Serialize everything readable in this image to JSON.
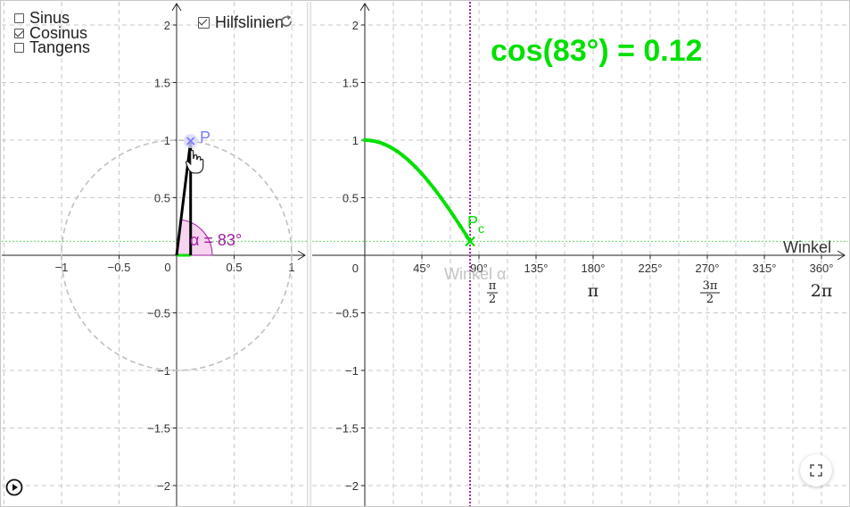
{
  "checkboxes": [
    {
      "label": "Sinus",
      "checked": false
    },
    {
      "label": "Cosinus",
      "checked": true
    },
    {
      "label": "Tangens",
      "checked": false
    }
  ],
  "hilfslinien": {
    "label": "Hilfslinien",
    "checked": true
  },
  "icons": {
    "reset": "reset-icon",
    "play": "play-icon",
    "fullscreen": "fullscreen-icon",
    "cursor": "hand-cursor-icon"
  },
  "formula": "cos(83°) = 0.12",
  "angle_label": "α = 83°",
  "point_labels": {
    "unit_circle_point": "P",
    "cos_point": "P",
    "cos_point_sub": "c"
  },
  "x_axis_label": "Winkel",
  "winkel_alpha_label": "Winkel α",
  "colors": {
    "cos_green": "#00e000",
    "angle_purple": "#a020a0",
    "point_blue": "#7b7bff",
    "grid": "#c8c8c8",
    "circle": "#c0c0c0"
  },
  "left_plot": {
    "x_ticks": [
      "−1",
      "−0.5",
      "0",
      "0.5",
      "1"
    ],
    "y_ticks": [
      "2",
      "1.5",
      "1",
      "0.5",
      "−0.5",
      "−1",
      "−1.5",
      "−2"
    ]
  },
  "right_plot": {
    "x_tick_degrees": [
      "45°",
      "90°",
      "135°",
      "180°",
      "225°",
      "270°",
      "315°",
      "360°"
    ],
    "y_ticks": [
      "2",
      "1.5",
      "1",
      "0.5",
      "0",
      "−0.5",
      "−1",
      "−1.5",
      "−2"
    ],
    "pi_labels": {
      "half_pi_num": "π",
      "half_pi_den": "2",
      "pi": "π",
      "three_half_pi_num": "3π",
      "three_half_pi_den": "2",
      "two_pi": "2π"
    }
  },
  "chart_data": {
    "type": "line",
    "title": "cos(83°) = 0.12",
    "xlabel": "Winkel",
    "ylabel": "",
    "x_unit": "degrees",
    "xlim": [
      0,
      375
    ],
    "ylim": [
      -2.1,
      2.1
    ],
    "series": [
      {
        "x": [
          0,
          5,
          10,
          15,
          20,
          25,
          30,
          35,
          40,
          45,
          50,
          55,
          60,
          65,
          70,
          75,
          80,
          83
        ],
        "values": [
          1.0,
          0.996,
          0.985,
          0.966,
          0.94,
          0.906,
          0.866,
          0.819,
          0.766,
          0.707,
          0.643,
          0.574,
          0.5,
          0.423,
          0.342,
          0.259,
          0.174,
          0.122
        ]
      }
    ],
    "current_point": {
      "x": 83,
      "y": 0.12
    },
    "grid": true
  }
}
